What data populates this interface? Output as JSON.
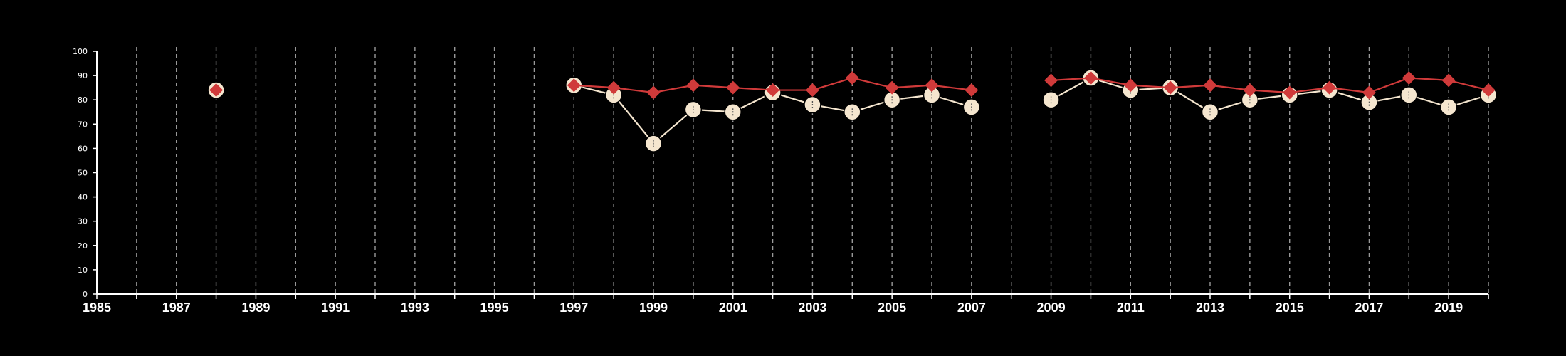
{
  "chart_data": {
    "type": "line",
    "title": "",
    "xlabel": "",
    "ylabel": "",
    "xlim": [
      1985,
      2020
    ],
    "ylim": [
      0,
      100
    ],
    "grid": "vertical-dashed",
    "colors": {
      "background": "#000000",
      "axis": "#ffffff",
      "grid": "#9a9a9a",
      "series_a": "#f5e6cf",
      "series_b": "#d03a3a"
    },
    "y_ticks": [
      "0",
      "10",
      "20",
      "30",
      "40",
      "50",
      "60",
      "70",
      "80",
      "90",
      "100"
    ],
    "x_tick_labels": [
      {
        "x": 1985,
        "label": "1985"
      },
      {
        "x": 1987,
        "label": "1987"
      },
      {
        "x": 1989,
        "label": "1989"
      },
      {
        "x": 1991,
        "label": "1991"
      },
      {
        "x": 1993,
        "label": "1993"
      },
      {
        "x": 1995,
        "label": "1995"
      },
      {
        "x": 1997,
        "label": "1997"
      },
      {
        "x": 1999,
        "label": "1999"
      },
      {
        "x": 2001,
        "label": "2001"
      },
      {
        "x": 2003,
        "label": "2003"
      },
      {
        "x": 2005,
        "label": "2005"
      },
      {
        "x": 2007,
        "label": "2007"
      },
      {
        "x": 2009,
        "label": "2009"
      },
      {
        "x": 2011,
        "label": "2011"
      },
      {
        "x": 2013,
        "label": "2013"
      },
      {
        "x": 2015,
        "label": "2015"
      },
      {
        "x": 2017,
        "label": "2017"
      },
      {
        "x": 2019,
        "label": "2019"
      }
    ],
    "series": [
      {
        "marker": "circle",
        "segments": [
          [
            [
              1988,
              84
            ]
          ],
          [
            [
              1997,
              86
            ],
            [
              1998,
              82
            ],
            [
              1999,
              62
            ],
            [
              2000,
              76
            ],
            [
              2001,
              75
            ],
            [
              2002,
              83
            ],
            [
              2003,
              78
            ],
            [
              2004,
              75
            ],
            [
              2005,
              80
            ],
            [
              2006,
              82
            ],
            [
              2007,
              77
            ]
          ],
          [
            [
              2009,
              80
            ],
            [
              2010,
              89
            ],
            [
              2011,
              84
            ],
            [
              2012,
              85
            ],
            [
              2013,
              75
            ],
            [
              2014,
              80
            ],
            [
              2015,
              82
            ],
            [
              2016,
              84
            ],
            [
              2017,
              79
            ],
            [
              2018,
              82
            ],
            [
              2019,
              77
            ],
            [
              2020,
              82
            ]
          ]
        ]
      },
      {
        "marker": "diamond",
        "segments": [
          [
            [
              1988,
              84
            ]
          ],
          [
            [
              1997,
              86
            ],
            [
              1998,
              85
            ],
            [
              1999,
              83
            ],
            [
              2000,
              86
            ],
            [
              2001,
              85
            ],
            [
              2002,
              84
            ],
            [
              2003,
              84
            ],
            [
              2004,
              89
            ],
            [
              2005,
              85
            ],
            [
              2006,
              86
            ],
            [
              2007,
              84
            ]
          ],
          [
            [
              2009,
              88
            ],
            [
              2010,
              89
            ],
            [
              2011,
              86
            ],
            [
              2012,
              85
            ],
            [
              2013,
              86
            ],
            [
              2014,
              84
            ],
            [
              2015,
              83
            ],
            [
              2016,
              85
            ],
            [
              2017,
              83
            ],
            [
              2018,
              89
            ],
            [
              2019,
              88
            ],
            [
              2020,
              84
            ]
          ]
        ]
      }
    ]
  }
}
